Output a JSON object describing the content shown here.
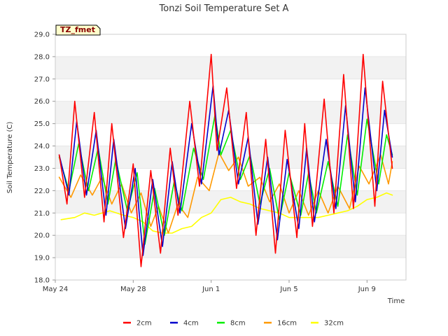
{
  "chart_data": {
    "type": "line",
    "title": "Tonzi Soil Temperature Set A",
    "xlabel": "Time",
    "ylabel": "Soil Temperature (C)",
    "ylim": [
      18.0,
      29.0
    ],
    "xlim_days": [
      0,
      18
    ],
    "y_ticks": [
      "18.0",
      "19.0",
      "20.0",
      "21.0",
      "22.0",
      "23.0",
      "24.0",
      "25.0",
      "26.0",
      "27.0",
      "28.0",
      "29.0"
    ],
    "x_ticks": [
      {
        "day": 0,
        "label": "May 24"
      },
      {
        "day": 4,
        "label": "May 28"
      },
      {
        "day": 8,
        "label": "Jun 1"
      },
      {
        "day": 12,
        "label": "Jun 5"
      },
      {
        "day": 16,
        "label": "Jun 9"
      }
    ],
    "grid": "horizontal alternating bands",
    "legend_position": "bottom",
    "badge": {
      "label": "TZ_fmet"
    },
    "series": [
      {
        "name": "2cm",
        "color": "#ff0000",
        "x": [
          0.2,
          0.6,
          1.0,
          1.5,
          2.0,
          2.5,
          2.9,
          3.5,
          4.0,
          4.4,
          4.9,
          5.4,
          5.9,
          6.3,
          6.9,
          7.4,
          8.0,
          8.3,
          8.8,
          9.3,
          9.8,
          10.3,
          10.8,
          11.3,
          11.8,
          12.4,
          12.8,
          13.2,
          13.8,
          14.3,
          14.8,
          15.3,
          15.8,
          16.4,
          16.8,
          17.3
        ],
        "y": [
          23.6,
          21.4,
          26.0,
          21.7,
          25.5,
          20.6,
          25.0,
          19.9,
          23.2,
          18.6,
          22.9,
          19.2,
          23.9,
          20.9,
          26.0,
          22.2,
          28.1,
          23.8,
          26.6,
          22.1,
          25.5,
          20.0,
          24.3,
          19.2,
          24.7,
          19.9,
          25.0,
          20.4,
          26.1,
          21.0,
          27.2,
          21.2,
          28.1,
          21.3,
          26.9,
          23.0
        ]
      },
      {
        "name": "4cm",
        "color": "#0000cc",
        "x": [
          0.2,
          0.7,
          1.1,
          1.6,
          2.1,
          2.6,
          3.0,
          3.6,
          4.1,
          4.5,
          5.0,
          5.5,
          6.0,
          6.4,
          7.0,
          7.5,
          8.1,
          8.4,
          8.9,
          9.4,
          9.9,
          10.4,
          10.9,
          11.4,
          11.9,
          12.5,
          12.9,
          13.3,
          13.9,
          14.4,
          14.9,
          15.4,
          15.9,
          16.5,
          16.9,
          17.3
        ],
        "y": [
          23.6,
          21.8,
          25.1,
          21.8,
          24.7,
          20.9,
          24.3,
          20.3,
          23.0,
          19.1,
          22.5,
          19.5,
          23.3,
          21.0,
          25.0,
          22.3,
          26.7,
          23.6,
          25.6,
          22.3,
          24.4,
          20.5,
          23.5,
          19.8,
          23.4,
          20.3,
          23.9,
          20.6,
          24.3,
          21.2,
          25.8,
          21.5,
          26.6,
          22.0,
          25.6,
          23.5
        ]
      },
      {
        "name": "8cm",
        "color": "#00ee00",
        "x": [
          0.2,
          0.7,
          1.2,
          1.7,
          2.2,
          2.7,
          3.1,
          3.7,
          4.2,
          4.6,
          5.1,
          5.6,
          6.1,
          6.5,
          7.1,
          7.6,
          8.2,
          8.5,
          9.0,
          9.5,
          10.0,
          10.5,
          11.0,
          11.5,
          12.0,
          12.6,
          13.0,
          13.4,
          14.0,
          14.5,
          15.0,
          15.5,
          16.0,
          16.6,
          17.0,
          17.3
        ],
        "y": [
          23.5,
          22.0,
          24.1,
          22.0,
          23.9,
          21.4,
          23.4,
          21.1,
          22.8,
          19.6,
          22.1,
          20.0,
          22.4,
          21.1,
          23.9,
          22.5,
          25.4,
          23.6,
          24.7,
          22.5,
          23.6,
          21.4,
          23.0,
          20.7,
          22.8,
          20.9,
          22.8,
          21.0,
          23.3,
          21.3,
          24.5,
          21.8,
          25.2,
          22.3,
          24.5,
          23.6
        ]
      },
      {
        "name": "16cm",
        "color": "#ff9900",
        "x": [
          0.2,
          0.8,
          1.3,
          1.9,
          2.4,
          2.9,
          3.4,
          3.9,
          4.4,
          4.9,
          5.3,
          5.8,
          6.3,
          6.8,
          7.3,
          7.9,
          8.4,
          8.9,
          9.4,
          9.9,
          10.5,
          11.0,
          11.5,
          12.0,
          12.5,
          13.0,
          13.5,
          14.0,
          14.5,
          15.1,
          15.6,
          16.1,
          16.7,
          17.1,
          17.3
        ],
        "y": [
          22.6,
          21.7,
          22.7,
          21.8,
          22.6,
          21.4,
          22.3,
          21.0,
          21.9,
          20.4,
          21.3,
          20.1,
          21.4,
          20.8,
          22.6,
          22.0,
          23.7,
          22.9,
          23.5,
          22.2,
          22.6,
          21.5,
          22.3,
          21.0,
          22.0,
          20.9,
          22.0,
          21.0,
          22.2,
          21.2,
          23.1,
          22.3,
          23.6,
          22.3,
          23.3
        ]
      },
      {
        "name": "32cm",
        "color": "#ffff00",
        "x": [
          0.3,
          1.0,
          1.5,
          2.0,
          2.8,
          3.5,
          4.0,
          4.5,
          5.0,
          5.5,
          6.0,
          6.5,
          7.0,
          7.5,
          8.0,
          8.5,
          9.0,
          9.5,
          10.0,
          10.5,
          11.0,
          11.5,
          12.0,
          12.5,
          13.0,
          13.5,
          14.0,
          14.5,
          15.0,
          15.5,
          16.0,
          16.5,
          17.0,
          17.3
        ],
        "y": [
          20.7,
          20.8,
          21.0,
          20.9,
          21.1,
          20.9,
          20.8,
          20.6,
          20.2,
          20.1,
          20.1,
          20.3,
          20.4,
          20.8,
          21.0,
          21.6,
          21.7,
          21.5,
          21.4,
          21.2,
          21.1,
          21.0,
          20.8,
          20.8,
          20.8,
          20.8,
          20.9,
          21.0,
          21.1,
          21.3,
          21.6,
          21.7,
          21.9,
          21.8
        ]
      }
    ]
  }
}
